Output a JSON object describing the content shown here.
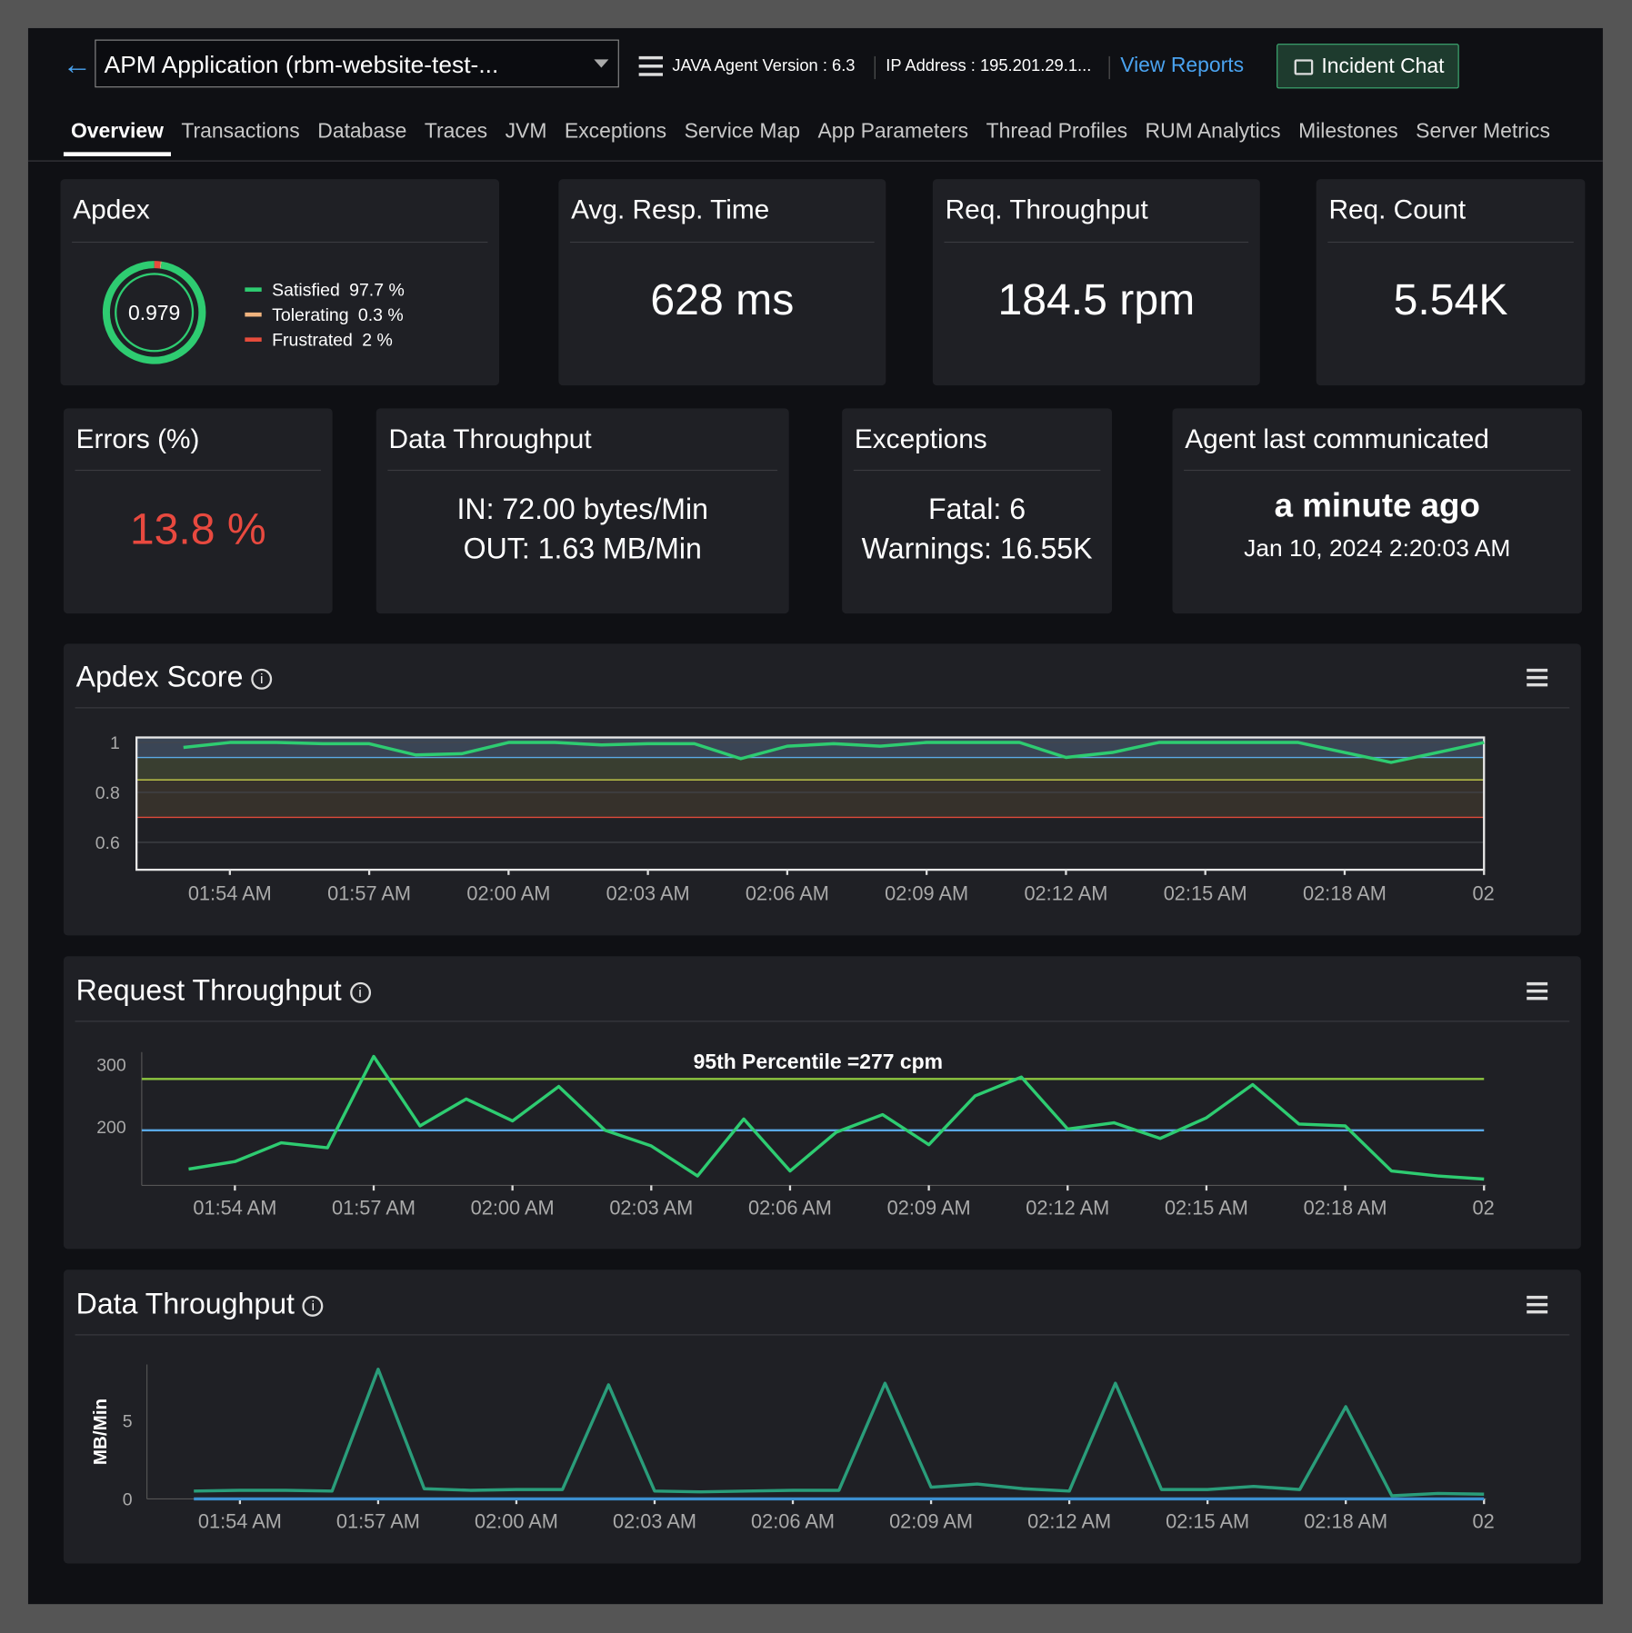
{
  "header": {
    "app_name": "APM Application (rbm-website-test-...",
    "agent_version": "JAVA Agent Version : 6.3",
    "ip_address": "IP Address : 195.201.29.1...",
    "view_reports": "View Reports",
    "incident_chat": "Incident Chat"
  },
  "tabs": [
    "Overview",
    "Transactions",
    "Database",
    "Traces",
    "JVM",
    "Exceptions",
    "Service Map",
    "App Parameters",
    "Thread Profiles",
    "RUM Analytics",
    "Milestones",
    "Server Metrics"
  ],
  "cards": {
    "avg_resp_time": {
      "title": "Avg. Resp. Time",
      "value": "628 ms"
    },
    "req_throughput": {
      "title": "Req. Throughput",
      "value": "184.5 rpm"
    },
    "req_count": {
      "title": "Req. Count",
      "value": "5.54K"
    },
    "errors": {
      "title": "Errors (%)",
      "value": "13.8 %"
    },
    "data_throughput": {
      "title": "Data Throughput",
      "in": "IN: 72.00 bytes/Min",
      "out": "OUT: 1.63 MB/Min"
    },
    "exceptions": {
      "title": "Exceptions",
      "fatal": "Fatal: 6",
      "warnings": "Warnings: 16.55K"
    },
    "agent": {
      "title": "Agent last communicated",
      "value": "a minute ago",
      "timestamp": "Jan 10, 2024 2:20:03 AM"
    }
  },
  "chart_data": [
    {
      "type": "pie",
      "title": "Apdex",
      "center_label": "0.979",
      "categories": [
        "Satisfied",
        "Tolerating",
        "Frustrated"
      ],
      "values": [
        97.7,
        0.3,
        2
      ],
      "value_labels": [
        "97.7 %",
        "0.3 %",
        "2 %"
      ],
      "colors": [
        "#2ecc71",
        "#f0b37e",
        "#e74c3c"
      ]
    },
    {
      "type": "line",
      "title": "Apdex Score",
      "x": [
        "01:53 AM",
        "01:54 AM",
        "01:55 AM",
        "01:56 AM",
        "01:57 AM",
        "01:58 AM",
        "01:59 AM",
        "02:00 AM",
        "02:01 AM",
        "02:02 AM",
        "02:03 AM",
        "02:04 AM",
        "02:05 AM",
        "02:06 AM",
        "02:07 AM",
        "02:08 AM",
        "02:09 AM",
        "02:10 AM",
        "02:11 AM",
        "02:12 AM",
        "02:13 AM",
        "02:14 AM",
        "02:15 AM",
        "02:16 AM",
        "02:17 AM",
        "02:18 AM",
        "02:19 AM",
        "02:20 AM",
        "02:21 AM"
      ],
      "values": [
        0.98,
        1.0,
        1.0,
        0.995,
        0.995,
        0.95,
        0.955,
        1.0,
        1.0,
        0.99,
        0.995,
        0.995,
        0.935,
        0.985,
        0.995,
        0.985,
        1.0,
        1.0,
        1.0,
        0.94,
        0.96,
        1.0,
        1.0,
        1.0,
        1.0,
        0.96,
        0.92,
        0.96,
        1.0
      ],
      "color": "#2ecc71",
      "ylim": [
        0.49,
        1.02
      ],
      "yticks": [
        1,
        0.8,
        0.6
      ],
      "xticks": [
        "01:54 AM",
        "01:57 AM",
        "02:00 AM",
        "02:03 AM",
        "02:06 AM",
        "02:09 AM",
        "02:12 AM",
        "02:15 AM",
        "02:18 AM",
        {
          "value": "02:21 AM",
          "label": "02"
        }
      ],
      "grid": true,
      "thresholds": [
        {
          "value": 0.94,
          "color": "#5aa9e6"
        },
        {
          "value": 0.85,
          "color": "#c8d04a"
        },
        {
          "value": 0.7,
          "color": "#e04a3a"
        }
      ]
    },
    {
      "type": "line",
      "title": "Request Throughput",
      "x": [
        "01:53 AM",
        "01:54 AM",
        "01:55 AM",
        "01:56 AM",
        "01:57 AM",
        "01:58 AM",
        "01:59 AM",
        "02:00 AM",
        "02:01 AM",
        "02:02 AM",
        "02:03 AM",
        "02:04 AM",
        "02:05 AM",
        "02:06 AM",
        "02:07 AM",
        "02:08 AM",
        "02:09 AM",
        "02:10 AM",
        "02:11 AM",
        "02:12 AM",
        "02:13 AM",
        "02:14 AM",
        "02:15 AM",
        "02:16 AM",
        "02:17 AM",
        "02:18 AM",
        "02:19 AM",
        "02:20 AM",
        "02:21 AM"
      ],
      "values": [
        133,
        145,
        175,
        167,
        313,
        202,
        245,
        210,
        265,
        195,
        170,
        122,
        213,
        130,
        192,
        220,
        172,
        250,
        280,
        197,
        207,
        182,
        215,
        268,
        205,
        202,
        130,
        122,
        117
      ],
      "color": "#2ecc71",
      "ylim": [
        107,
        320
      ],
      "yticks": [
        300,
        200
      ],
      "xticks": [
        "01:54 AM",
        "01:57 AM",
        "02:00 AM",
        "02:03 AM",
        "02:06 AM",
        "02:09 AM",
        "02:12 AM",
        "02:15 AM",
        "02:18 AM",
        {
          "value": "02:21 AM",
          "label": "02"
        }
      ],
      "grid": false,
      "reference_lines": [
        {
          "value": 277,
          "label": "95th Percentile =277 cpm",
          "color": "#8dc63f"
        },
        {
          "value": 195,
          "color": "#5aa9e6"
        }
      ]
    },
    {
      "type": "line",
      "title": "Data Throughput",
      "ylabel": "MB/Min",
      "x": [
        "01:53 AM",
        "01:54 AM",
        "01:55 AM",
        "01:56 AM",
        "01:57 AM",
        "01:58 AM",
        "01:59 AM",
        "02:00 AM",
        "02:01 AM",
        "02:02 AM",
        "02:03 AM",
        "02:04 AM",
        "02:05 AM",
        "02:06 AM",
        "02:07 AM",
        "02:08 AM",
        "02:09 AM",
        "02:10 AM",
        "02:11 AM",
        "02:12 AM",
        "02:13 AM",
        "02:14 AM",
        "02:15 AM",
        "02:16 AM",
        "02:17 AM",
        "02:18 AM",
        "02:19 AM",
        "02:20 AM",
        "02:21 AM"
      ],
      "series": [
        {
          "color": "#2a9d7a",
          "values": [
            0.5,
            0.55,
            0.55,
            0.5,
            8.3,
            0.65,
            0.55,
            0.6,
            0.6,
            7.3,
            0.5,
            0.45,
            0.5,
            0.55,
            0.55,
            7.4,
            0.75,
            0.95,
            0.65,
            0.5,
            7.4,
            0.6,
            0.6,
            0.8,
            0.6,
            5.9,
            0.2,
            0.35,
            0.3
          ]
        },
        {
          "color": "#3b8fd0",
          "values": [
            0,
            0,
            0,
            0,
            0,
            0,
            0,
            0,
            0,
            0,
            0,
            0,
            0,
            0,
            0,
            0,
            0,
            0,
            0,
            0,
            0,
            0,
            0,
            0,
            0,
            0,
            0,
            0,
            0
          ]
        }
      ],
      "ylim": [
        0,
        8.6
      ],
      "yticks": [
        5,
        0
      ],
      "xticks": [
        "01:54 AM",
        "01:57 AM",
        "02:00 AM",
        "02:03 AM",
        "02:06 AM",
        "02:09 AM",
        "02:12 AM",
        "02:15 AM",
        "02:18 AM",
        {
          "value": "02:21 AM",
          "label": "02"
        }
      ],
      "grid": false
    }
  ]
}
